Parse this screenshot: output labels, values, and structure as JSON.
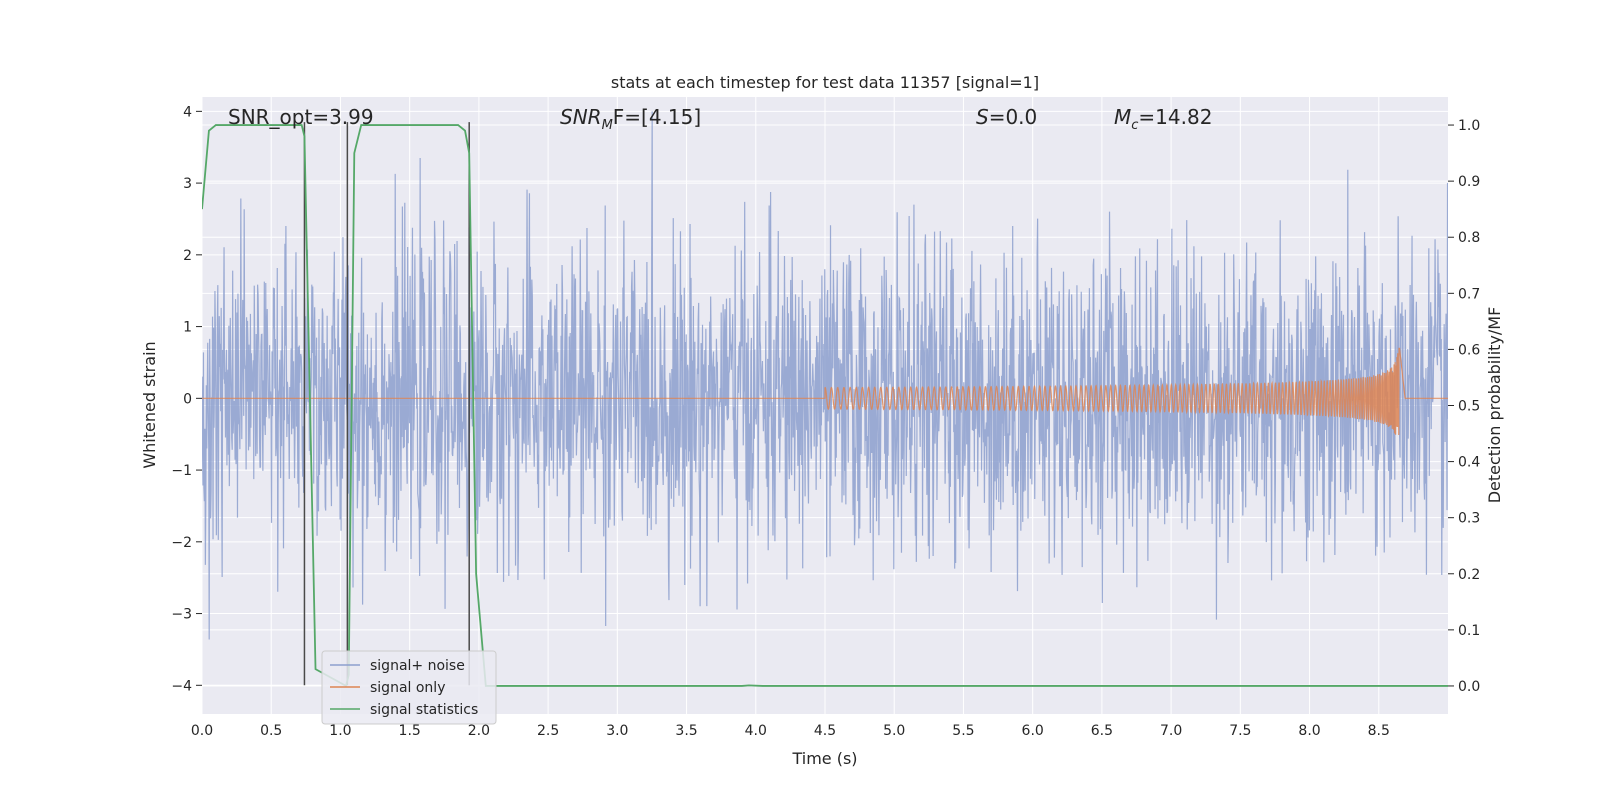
{
  "chart_data": {
    "type": "line",
    "title": "stats at each timestep for test data 11357 [signal=1]",
    "xlabel": "Time (s)",
    "ylabel": "Whitened strain",
    "y2label": "Detection probability/MF",
    "xlim": [
      0.0,
      9.0
    ],
    "ylim": [
      -4.4,
      4.2
    ],
    "y2lim": [
      -0.05,
      1.05
    ],
    "xticks": [
      "0.0",
      "0.5",
      "1.0",
      "1.5",
      "2.0",
      "2.5",
      "3.0",
      "3.5",
      "4.0",
      "4.5",
      "5.0",
      "5.5",
      "6.0",
      "6.5",
      "7.0",
      "7.5",
      "8.0",
      "8.5"
    ],
    "yticks": [
      "4",
      "3",
      "2",
      "1",
      "0",
      "−1",
      "−2",
      "−3",
      "−4"
    ],
    "y2ticks": [
      "1.0",
      "0.9",
      "0.8",
      "0.7",
      "0.6",
      "0.5",
      "0.4",
      "0.3",
      "0.2",
      "0.1",
      "0.0"
    ],
    "grid": true,
    "legend_position": "lower-left",
    "annotations": {
      "snr_opt": "SNR_opt=3.99",
      "snr_mf_label": "SNR",
      "snr_mf_sub": "M",
      "snr_mf_rest": "F=[4.15]",
      "s_label": "S",
      "s_value": "=0.0",
      "mc_label": "M",
      "mc_sub": "c",
      "mc_value": "=14.82"
    },
    "series": [
      {
        "name": "signal+ noise",
        "color": "#8c9fce",
        "kind": "noise",
        "t_range": [
          0.0,
          9.0
        ],
        "envelope_typical": [
          -1.8,
          2.0
        ],
        "envelope_extreme": [
          -4.0,
          4.0
        ]
      },
      {
        "name": "signal only",
        "color": "#dd8452",
        "kind": "chirp",
        "t_start": 4.5,
        "t_merger": 8.65,
        "peak_amplitude": 0.85
      },
      {
        "name": "signal statistics",
        "color": "#55a868",
        "axis": "right",
        "x": [
          0.0,
          0.05,
          0.1,
          0.72,
          0.74,
          0.82,
          1.04,
          1.06,
          1.1,
          1.15,
          1.85,
          1.9,
          1.93,
          1.98,
          2.05,
          3.9,
          3.95,
          4.05,
          9.0
        ],
        "y": [
          0.85,
          0.99,
          1.0,
          1.0,
          0.98,
          0.03,
          0.0,
          0.02,
          0.95,
          1.0,
          1.0,
          0.99,
          0.95,
          0.2,
          0.0,
          0.0,
          0.001,
          0.0,
          0.0
        ]
      }
    ],
    "vertical_markers": [
      0.74,
      1.05,
      1.93
    ]
  }
}
